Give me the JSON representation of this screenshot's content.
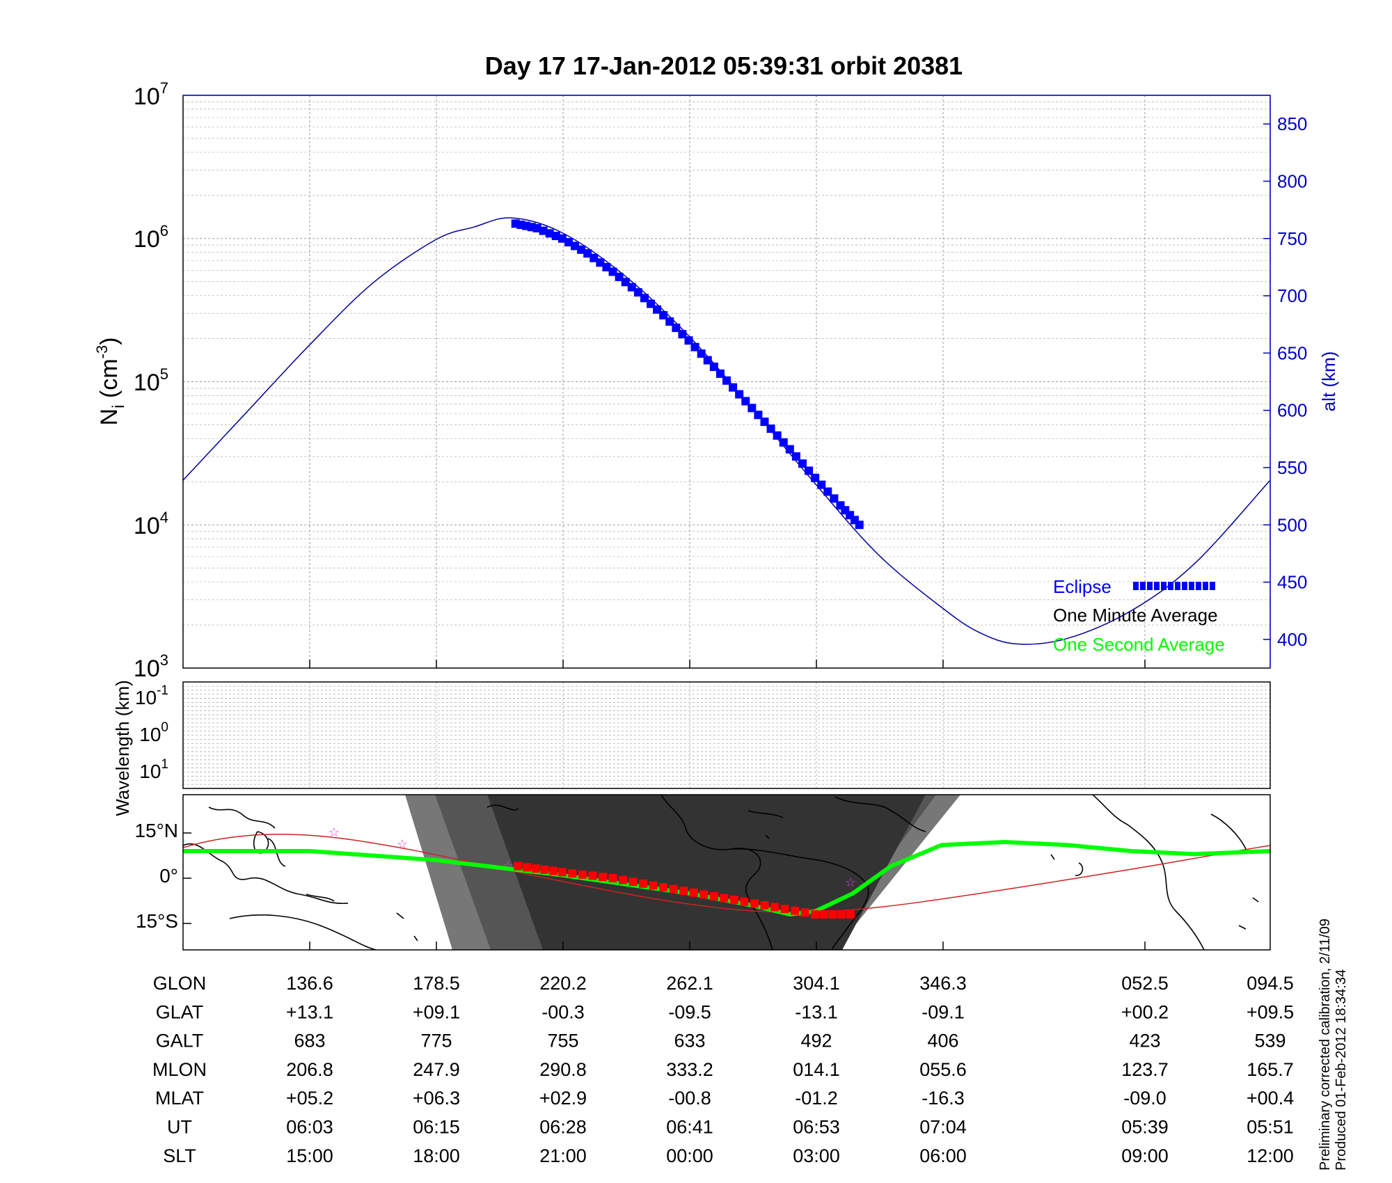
{
  "title": "Day 17   17-Jan-2012 05:39:31   orbit 20381",
  "colors": {
    "alt_line": "#0000a0",
    "eclipse": "#0000ff",
    "one_second": "#00ff00",
    "one_minute": "#000000",
    "track_red": "#ff0000",
    "night_dark": "#333333",
    "night_mid": "#555555",
    "night_light": "#777777",
    "right_axis": "#0000cc",
    "marker_star": "#cc44cc"
  },
  "chart_data": [
    {
      "type": "line",
      "name": "density-altitude",
      "ylabel_base": "N",
      "ylabel_sub": "i",
      "ylabel_unit_open": " (cm",
      "ylabel_unit_sup": "-3",
      "ylabel_unit_close": ")",
      "y_log_ticks": [
        {
          "base": "10",
          "exp": "3"
        },
        {
          "base": "10",
          "exp": "4"
        },
        {
          "base": "10",
          "exp": "5"
        },
        {
          "base": "10",
          "exp": "6"
        },
        {
          "base": "10",
          "exp": "7"
        }
      ],
      "ylim": [
        1000,
        10000000
      ],
      "yscale": "log",
      "y2label": "alt (km)",
      "y2lim": [
        375,
        875
      ],
      "y2_ticks": [
        "400",
        "450",
        "500",
        "550",
        "600",
        "650",
        "700",
        "750",
        "800",
        "850"
      ],
      "xlim": [
        0,
        8.6
      ],
      "grid": true,
      "legend": {
        "placement": "bottom-right",
        "entries": [
          "Eclipse",
          "One Minute Average",
          "One Second Average"
        ]
      },
      "series": [
        {
          "name": "alt (km)",
          "x": [
            0,
            0.5,
            1,
            1.5,
            2,
            2.3,
            2.6,
            3,
            3.5,
            4,
            4.5,
            5,
            5.5,
            6,
            6.3,
            6.6,
            7,
            7.5,
            8,
            8.6
          ],
          "values": [
            539,
            598,
            657,
            711,
            749,
            760,
            768,
            755,
            717,
            665,
            602,
            536,
            474,
            428,
            406,
            396,
            401,
            425,
            466,
            539
          ]
        },
        {
          "name": "Eclipse",
          "x": [
            2.63,
            2.8,
            3.0,
            3.2,
            3.4,
            3.6,
            3.8,
            4.0,
            4.2,
            4.4,
            4.6,
            4.8,
            5.0,
            5.2,
            5.35
          ],
          "values": [
            763,
            759,
            750,
            737,
            721,
            703,
            683,
            661,
            638,
            614,
            590,
            566,
            541,
            517,
            500
          ]
        }
      ]
    },
    {
      "type": "heatmap",
      "name": "wavelength",
      "ylabel": "Wavelength (km)",
      "y_log_ticks": [
        {
          "base": "10",
          "exp": "-1"
        },
        {
          "base": "10",
          "exp": "0"
        },
        {
          "base": "10",
          "exp": "1"
        }
      ],
      "grid": true
    },
    {
      "type": "scatter",
      "name": "ground-track-map",
      "y_ticks": [
        "15°N",
        "0°",
        "15°S"
      ],
      "series": [
        {
          "name": "One Second Average",
          "x": [
            0,
            1,
            2,
            3,
            3.5,
            4,
            4.5,
            4.8,
            5,
            5.3,
            5.6,
            6,
            6.5,
            7,
            7.5,
            8,
            8.6
          ],
          "values": [
            9,
            9,
            6,
            1,
            -2,
            -5,
            -9,
            -12,
            -11,
            -5,
            4,
            11,
            12,
            11,
            9,
            8,
            9
          ]
        },
        {
          "name": "track-red",
          "x": [
            2.65,
            3.0,
            3.4,
            3.8,
            4.2,
            4.6,
            5.0,
            5.35
          ],
          "values": [
            4,
            2,
            0,
            -3,
            -6,
            -9,
            -12,
            -12
          ]
        }
      ]
    }
  ],
  "table": {
    "row_labels": [
      "GLON",
      "GLAT",
      "GALT",
      "MLON",
      "MLAT",
      "UT",
      "SLT"
    ],
    "columns": [
      [
        "136.6",
        "+13.1",
        "683",
        "206.8",
        "+05.2",
        "06:03",
        "15:00"
      ],
      [
        "178.5",
        "+09.1",
        "775",
        "247.9",
        "+06.3",
        "06:15",
        "18:00"
      ],
      [
        "220.2",
        "-00.3",
        "755",
        "290.8",
        "+02.9",
        "06:28",
        "21:00"
      ],
      [
        "262.1",
        "-09.5",
        "633",
        "333.2",
        "-00.8",
        "06:41",
        "00:00"
      ],
      [
        "304.1",
        "-13.1",
        "492",
        "014.1",
        "-01.2",
        "06:53",
        "03:00"
      ],
      [
        "346.3",
        "-09.1",
        "406",
        "055.6",
        "-16.3",
        "07:04",
        "06:00"
      ],
      [
        "052.5",
        "+00.2",
        "423",
        "123.7",
        "-09.0",
        "05:39",
        "09:00"
      ],
      [
        "094.5",
        "+09.5",
        "539",
        "165.7",
        "+00.4",
        "05:51",
        "12:00"
      ]
    ]
  },
  "footnote": [
    "Preliminary corrected calibration, 2/11/09",
    "Produced 01-Feb-2012 18:34:34"
  ]
}
